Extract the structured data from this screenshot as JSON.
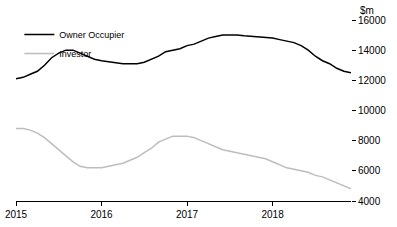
{
  "chart_data": {
    "type": "line",
    "y_label": "$m",
    "categories": [
      "2015",
      null,
      null,
      null,
      null,
      null,
      null,
      null,
      null,
      null,
      null,
      null,
      "2016",
      null,
      null,
      null,
      null,
      null,
      null,
      null,
      null,
      null,
      null,
      null,
      "2017",
      null,
      null,
      null,
      null,
      null,
      null,
      null,
      null,
      null,
      null,
      null,
      "2018",
      null,
      null,
      null,
      null,
      null,
      null,
      null,
      null,
      null,
      null,
      null
    ],
    "series": [
      {
        "name": "Owner Occupier",
        "color": "#000000",
        "values": [
          12100,
          12200,
          12400,
          12600,
          13000,
          13500,
          13800,
          14000,
          14000,
          13800,
          13600,
          13400,
          13300,
          13250,
          13200,
          13100,
          13100,
          13100,
          13200,
          13400,
          13600,
          13900,
          14000,
          14100,
          14300,
          14400,
          14600,
          14800,
          14900,
          15000,
          15000,
          15000,
          14950,
          14900,
          14850,
          14800,
          14800,
          14700,
          14600,
          14500,
          14300,
          14000,
          13600,
          13300,
          13100,
          12800,
          12600,
          12500
        ]
      },
      {
        "name": "Investor",
        "color": "#bdbdbd",
        "values": [
          8800,
          8800,
          8700,
          8500,
          8200,
          7800,
          7400,
          7000,
          6600,
          6300,
          6200,
          6200,
          6200,
          6300,
          6400,
          6500,
          6700,
          6900,
          7200,
          7500,
          7900,
          8100,
          8300,
          8300,
          8300,
          8200,
          8000,
          7800,
          7600,
          7400,
          7300,
          7200,
          7100,
          7000,
          6900,
          6800,
          6600,
          6400,
          6200,
          6100,
          6000,
          5900,
          5700,
          5600,
          5400,
          5200,
          5000,
          4800
        ]
      }
    ],
    "ylim": [
      4000,
      16000
    ],
    "yticks": [
      4000,
      6000,
      8000,
      10000,
      12000,
      14000,
      16000
    ],
    "grid": false,
    "legend": "upper left"
  }
}
